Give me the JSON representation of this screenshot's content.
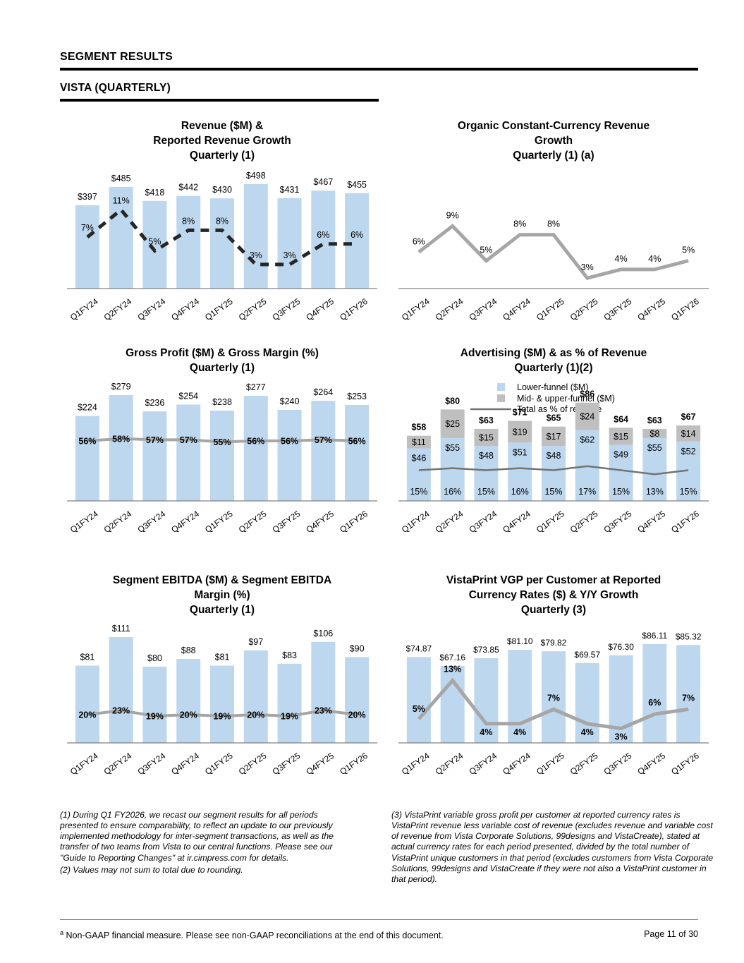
{
  "page": {
    "section_title": "SEGMENT RESULTS",
    "subsection_title": "VISTA (QUARTERLY)"
  },
  "colors": {
    "bar_blue": "#BDD7EE",
    "bar_gray": "#BFBFBF",
    "line_gray": "#A6A6A6",
    "line_dark": "#262626",
    "line_midgray": "#737373",
    "axis_gray": "#808080"
  },
  "chart_data": [
    {
      "id": "revenue-reported-growth",
      "type": "bar",
      "title": "Revenue ($M) & Reported Revenue Growth Quarterly (1)",
      "title_lines": [
        "Revenue ($M) &",
        "Reported Revenue Growth",
        "Quarterly (1)"
      ],
      "categories": [
        "Q1FY24",
        "Q2FY24",
        "Q3FY24",
        "Q4FY24",
        "Q1FY25",
        "Q2FY25",
        "Q3FY25",
        "Q4FY25",
        "Q1FY26"
      ],
      "series": [
        {
          "name": "Revenue ($M)",
          "type": "bar",
          "values": [
            397,
            485,
            418,
            442,
            430,
            498,
            431,
            467,
            455
          ],
          "labels": [
            "$397",
            "$485",
            "$418",
            "$442",
            "$430",
            "$498",
            "$431",
            "$467",
            "$455"
          ]
        },
        {
          "name": "Reported revenue growth",
          "type": "line",
          "values": [
            7,
            11,
            5,
            8,
            8,
            3,
            3,
            6,
            6
          ],
          "labels": [
            "7%",
            "11%",
            "5%",
            "8%",
            "8%",
            "3%",
            "3%",
            "6%",
            "6%"
          ]
        }
      ]
    },
    {
      "id": "organic-cc-growth",
      "type": "line",
      "title": "Organic Constant-Currency Revenue Growth Quarterly (1) (a)",
      "title_lines": [
        "Organic Constant-Currency Revenue",
        "Growth",
        "Quarterly (1) (a)"
      ],
      "categories": [
        "Q1FY24",
        "Q2FY24",
        "Q3FY24",
        "Q4FY24",
        "Q1FY25",
        "Q2FY25",
        "Q3FY25",
        "Q4FY25",
        "Q1FY26"
      ],
      "series": [
        {
          "name": "Organic constant-currency revenue growth",
          "type": "line",
          "values": [
            6,
            9,
            5,
            8,
            8,
            3,
            4,
            4,
            5
          ],
          "labels": [
            "6%",
            "9%",
            "5%",
            "8%",
            "8%",
            "3%",
            "4%",
            "4%",
            "5%"
          ]
        }
      ]
    },
    {
      "id": "gross-profit-margin",
      "type": "bar",
      "title": "Gross Profit ($M) & Gross Margin (%) Quarterly (1)",
      "title_lines": [
        "Gross Profit ($M) & Gross Margin (%)",
        "Quarterly (1)"
      ],
      "categories": [
        "Q1FY24",
        "Q2FY24",
        "Q3FY24",
        "Q4FY24",
        "Q1FY25",
        "Q2FY25",
        "Q3FY25",
        "Q4FY25",
        "Q1FY26"
      ],
      "series": [
        {
          "name": "Gross profit ($M)",
          "type": "bar",
          "values": [
            224,
            279,
            236,
            254,
            238,
            277,
            240,
            264,
            253
          ],
          "labels": [
            "$224",
            "$279",
            "$236",
            "$254",
            "$238",
            "$277",
            "$240",
            "$264",
            "$253"
          ]
        },
        {
          "name": "Gross margin (%)",
          "type": "line",
          "values": [
            56,
            58,
            57,
            57,
            55,
            56,
            56,
            57,
            56
          ],
          "labels": [
            "56%",
            "58%",
            "57%",
            "57%",
            "55%",
            "56%",
            "56%",
            "57%",
            "56%"
          ]
        }
      ]
    },
    {
      "id": "advertising-pct-revenue",
      "type": "stacked-bar",
      "title": "Advertising ($M) & as % of Revenue Quarterly (1)(2)",
      "title_lines": [
        "Advertising ($M) & as % of Revenue",
        "Quarterly (1)(2)"
      ],
      "categories": [
        "Q1FY24",
        "Q2FY24",
        "Q3FY24",
        "Q4FY24",
        "Q1FY25",
        "Q2FY25",
        "Q3FY25",
        "Q4FY25",
        "Q1FY26"
      ],
      "legend": [
        "Lower-funnel ($M)",
        "Mid- & upper-funnel ($M)",
        "Total as % of revenue"
      ],
      "total_labels": [
        "$58",
        "$80",
        "$63",
        "$71",
        "$65",
        "$86",
        "$64",
        "$63",
        "$67"
      ],
      "series": [
        {
          "name": "Lower-funnel ($M)",
          "type": "bar",
          "values": [
            46,
            55,
            48,
            51,
            48,
            62,
            49,
            55,
            52
          ],
          "labels": [
            "$46",
            "$55",
            "$48",
            "$51",
            "$48",
            "$62",
            "$49",
            "$55",
            "$52"
          ]
        },
        {
          "name": "Mid- & upper-funnel ($M)",
          "type": "bar",
          "values": [
            11,
            25,
            15,
            19,
            17,
            24,
            15,
            8,
            14
          ],
          "labels": [
            "$11",
            "$25",
            "$15",
            "$19",
            "$17",
            "$24",
            "$15",
            "$8",
            "$14"
          ]
        },
        {
          "name": "Total as % of revenue",
          "type": "line",
          "values": [
            15,
            16,
            15,
            16,
            15,
            17,
            15,
            13,
            15
          ],
          "labels": [
            "15%",
            "16%",
            "15%",
            "16%",
            "15%",
            "17%",
            "15%",
            "13%",
            "15%"
          ]
        }
      ]
    },
    {
      "id": "segment-ebitda-margin",
      "type": "bar",
      "title": "Segment EBITDA ($M) & Segment EBITDA Margin (%) Quarterly (1)",
      "title_lines": [
        "Segment EBITDA ($M) & Segment EBITDA",
        "Margin (%)",
        "Quarterly (1)"
      ],
      "categories": [
        "Q1FY24",
        "Q2FY24",
        "Q3FY24",
        "Q4FY24",
        "Q1FY25",
        "Q2FY25",
        "Q3FY25",
        "Q4FY25",
        "Q1FY26"
      ],
      "series": [
        {
          "name": "Segment EBITDA ($M)",
          "type": "bar",
          "values": [
            81,
            111,
            80,
            88,
            81,
            97,
            83,
            106,
            90
          ],
          "labels": [
            "$81",
            "$111",
            "$80",
            "$88",
            "$81",
            "$97",
            "$83",
            "$106",
            "$90"
          ]
        },
        {
          "name": "Segment EBITDA margin (%)",
          "type": "line",
          "values": [
            20,
            23,
            19,
            20,
            19,
            20,
            19,
            23,
            20
          ],
          "labels": [
            "20%",
            "23%",
            "19%",
            "20%",
            "19%",
            "20%",
            "19%",
            "23%",
            "20%"
          ]
        }
      ]
    },
    {
      "id": "vistaprint-vgp-per-customer",
      "type": "bar",
      "title": "VistaPrint VGP per Customer at Reported Currency Rates ($) & Y/Y Growth Quarterly (3)",
      "title_lines": [
        "VistaPrint VGP per Customer at Reported",
        "Currency Rates ($) & Y/Y Growth",
        "Quarterly (3)"
      ],
      "categories": [
        "Q1FY24",
        "Q2FY24",
        "Q3FY24",
        "Q4FY24",
        "Q1FY25",
        "Q2FY25",
        "Q3FY25",
        "Q4FY25",
        "Q1FY26"
      ],
      "series": [
        {
          "name": "VGP per customer ($)",
          "type": "bar",
          "values": [
            74.87,
            67.16,
            73.85,
            81.1,
            79.82,
            69.57,
            76.3,
            86.11,
            85.32
          ],
          "labels": [
            "$74.87",
            "$67.16",
            "$73.85",
            "$81.10",
            "$79.82",
            "$69.57",
            "$76.30",
            "$86.11",
            "$85.32"
          ]
        },
        {
          "name": "Y/Y growth",
          "type": "line",
          "values": [
            5,
            13,
            4,
            4,
            7,
            4,
            3,
            6,
            7
          ],
          "labels": [
            "5%",
            "13%",
            "4%",
            "4%",
            "7%",
            "4%",
            "3%",
            "6%",
            "7%"
          ]
        }
      ]
    }
  ],
  "footnotes": {
    "left_1": "(1) During Q1 FY2026, we recast our segment results for all periods presented to ensure comparability, to reflect an update to our previously implemented methodology for inter-segment transactions, as well as the transfer of two teams from Vista to our central functions. Please see our \"Guide to Reporting Changes\" at ir.cimpress.com for details.",
    "left_2": "(2) Values may not sum to total due to rounding.",
    "right_1": "(3) VistaPrint variable gross profit per customer at reported currency rates is VistaPrint revenue less variable cost of revenue (excludes revenue and variable cost of revenue from Vista Corporate Solutions, 99designs and VistaCreate), stated at actual currency rates for each period presented, divided by the total number of VistaPrint unique customers in that period (excludes customers from Vista Corporate Solutions, 99designs and VistaCreate if they were not also a VistaPrint customer in that period)."
  },
  "footer": {
    "marker": "a",
    "note": " Non-GAAP financial measure. Please see non-GAAP reconciliations at the end of this document.",
    "page_number": "Page 11 of 30"
  }
}
